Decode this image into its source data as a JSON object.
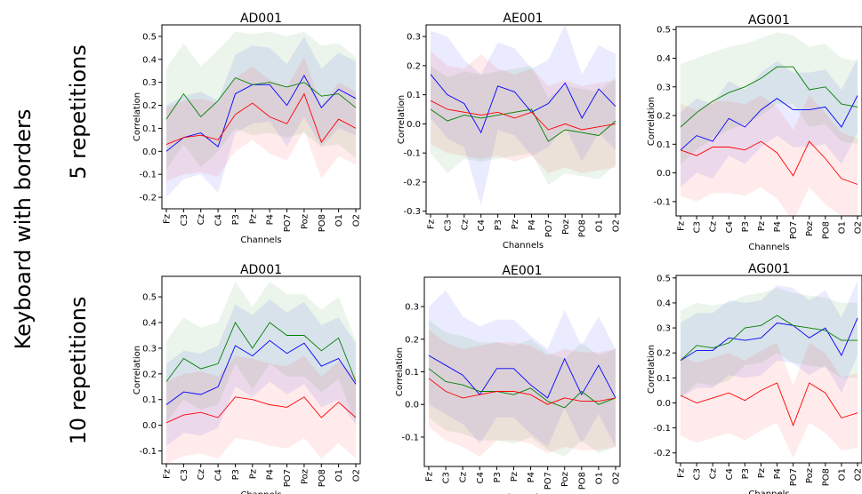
{
  "figure": {
    "row_group_label": "Keyboard with borders",
    "row_labels": [
      "5 repetitions",
      "10 repetitions"
    ]
  },
  "colors": {
    "blue": "#0000ff",
    "green": "#008000",
    "red": "#ff0000"
  },
  "chart_data": [
    {
      "type": "line",
      "title": "AD001",
      "xlabel": "Channels",
      "ylabel": "Correlation",
      "categories": [
        "Fz",
        "C3",
        "Cz",
        "C4",
        "P3",
        "Pz",
        "P4",
        "PO7",
        "Poz",
        "PO8",
        "O1",
        "O2"
      ],
      "ylim": [
        -0.25,
        0.55
      ],
      "yticks": [
        -0.2,
        -0.1,
        0.0,
        0.1,
        0.2,
        0.3,
        0.4,
        0.5
      ],
      "series": [
        {
          "color": "blue",
          "values": [
            0.0,
            0.06,
            0.08,
            0.02,
            0.25,
            0.29,
            0.29,
            0.2,
            0.33,
            0.19,
            0.27,
            0.23
          ],
          "lower": [
            -0.2,
            -0.12,
            -0.1,
            -0.18,
            0.08,
            0.12,
            0.13,
            0.02,
            0.15,
            0.02,
            0.1,
            0.07
          ],
          "upper": [
            0.2,
            0.24,
            0.26,
            0.22,
            0.42,
            0.46,
            0.45,
            0.38,
            0.5,
            0.36,
            0.43,
            0.39
          ]
        },
        {
          "color": "green",
          "values": [
            0.14,
            0.25,
            0.15,
            0.22,
            0.32,
            0.29,
            0.3,
            0.28,
            0.3,
            0.24,
            0.25,
            0.19
          ],
          "lower": [
            -0.08,
            0.03,
            -0.07,
            0.0,
            0.1,
            0.07,
            0.08,
            0.06,
            0.08,
            0.02,
            0.03,
            -0.03
          ],
          "upper": [
            0.36,
            0.47,
            0.37,
            0.44,
            0.52,
            0.51,
            0.52,
            0.5,
            0.52,
            0.46,
            0.47,
            0.41
          ]
        },
        {
          "color": "red",
          "values": [
            0.03,
            0.06,
            0.07,
            0.05,
            0.16,
            0.21,
            0.15,
            0.12,
            0.25,
            0.04,
            0.14,
            0.1
          ],
          "lower": [
            -0.13,
            -0.1,
            -0.09,
            -0.11,
            0.0,
            0.05,
            -0.01,
            -0.04,
            0.09,
            -0.12,
            -0.02,
            -0.06
          ],
          "upper": [
            0.19,
            0.22,
            0.23,
            0.21,
            0.32,
            0.37,
            0.31,
            0.28,
            0.41,
            0.2,
            0.3,
            0.26
          ]
        }
      ]
    },
    {
      "type": "line",
      "title": "AE001",
      "xlabel": "Channels",
      "ylabel": "Correlation",
      "categories": [
        "Fz",
        "C3",
        "Cz",
        "C4",
        "P3",
        "Pz",
        "P4",
        "PO7",
        "Poz",
        "PO8",
        "O1",
        "O2"
      ],
      "ylim": [
        -0.31,
        0.34
      ],
      "yticks": [
        -0.3,
        -0.2,
        -0.1,
        0.0,
        0.1,
        0.2,
        0.3
      ],
      "series": [
        {
          "color": "blue",
          "values": [
            0.17,
            0.1,
            0.07,
            -0.03,
            0.13,
            0.11,
            0.04,
            0.07,
            0.14,
            0.02,
            0.12,
            0.06
          ],
          "lower": [
            0.02,
            -0.05,
            -0.08,
            -0.28,
            -0.02,
            -0.04,
            -0.11,
            -0.08,
            -0.01,
            -0.13,
            -0.03,
            -0.09
          ],
          "upper": [
            0.32,
            0.3,
            0.22,
            0.17,
            0.28,
            0.26,
            0.19,
            0.22,
            0.34,
            0.17,
            0.27,
            0.24
          ]
        },
        {
          "color": "green",
          "values": [
            0.05,
            0.01,
            0.03,
            0.02,
            0.03,
            0.04,
            0.05,
            -0.06,
            -0.02,
            -0.03,
            -0.04,
            0.01
          ],
          "lower": [
            -0.1,
            -0.17,
            -0.12,
            -0.13,
            -0.12,
            -0.11,
            -0.1,
            -0.21,
            -0.17,
            -0.18,
            -0.19,
            -0.14
          ],
          "upper": [
            0.2,
            0.16,
            0.18,
            0.17,
            0.18,
            0.19,
            0.2,
            0.09,
            0.13,
            0.12,
            0.11,
            0.16
          ]
        },
        {
          "color": "red",
          "values": [
            0.08,
            0.05,
            0.04,
            0.03,
            0.04,
            0.02,
            0.04,
            -0.02,
            0.0,
            -0.02,
            -0.01,
            0.0
          ],
          "lower": [
            -0.07,
            -0.1,
            -0.11,
            -0.12,
            -0.11,
            -0.13,
            -0.11,
            -0.17,
            -0.15,
            -0.17,
            -0.16,
            -0.15
          ],
          "upper": [
            0.25,
            0.2,
            0.19,
            0.24,
            0.19,
            0.17,
            0.19,
            0.13,
            0.15,
            0.13,
            0.14,
            0.15
          ]
        }
      ]
    },
    {
      "type": "line",
      "title": "AG001",
      "xlabel": "Channels",
      "ylabel": "Correlation",
      "categories": [
        "Fz",
        "C3",
        "Cz",
        "C4",
        "P3",
        "Pz",
        "P4",
        "PO7",
        "Poz",
        "PO8",
        "O1",
        "O2"
      ],
      "ylim": [
        -0.15,
        0.51
      ],
      "yticks": [
        -0.1,
        0.0,
        0.1,
        0.2,
        0.3,
        0.4,
        0.5
      ],
      "series": [
        {
          "color": "blue",
          "values": [
            0.08,
            0.13,
            0.11,
            0.19,
            0.16,
            0.22,
            0.26,
            0.22,
            0.22,
            0.23,
            0.16,
            0.27
          ],
          "lower": [
            -0.05,
            0.0,
            -0.02,
            0.06,
            0.03,
            0.09,
            0.13,
            0.09,
            0.09,
            0.1,
            0.03,
            0.14
          ],
          "upper": [
            0.21,
            0.26,
            0.24,
            0.32,
            0.29,
            0.35,
            0.39,
            0.35,
            0.35,
            0.36,
            0.29,
            0.4
          ]
        },
        {
          "color": "green",
          "values": [
            0.16,
            0.21,
            0.25,
            0.28,
            0.3,
            0.33,
            0.37,
            0.37,
            0.29,
            0.3,
            0.24,
            0.23
          ],
          "lower": [
            0.03,
            0.08,
            0.12,
            0.15,
            0.17,
            0.2,
            0.24,
            0.24,
            0.16,
            0.17,
            0.11,
            0.1
          ],
          "upper": [
            0.38,
            0.4,
            0.42,
            0.44,
            0.45,
            0.47,
            0.49,
            0.48,
            0.44,
            0.45,
            0.4,
            0.39
          ]
        },
        {
          "color": "red",
          "values": [
            0.08,
            0.06,
            0.09,
            0.09,
            0.08,
            0.11,
            0.07,
            -0.01,
            0.11,
            0.05,
            -0.02,
            -0.04
          ],
          "lower": [
            -0.08,
            -0.1,
            -0.07,
            -0.07,
            -0.08,
            -0.05,
            -0.09,
            -0.17,
            -0.05,
            -0.11,
            -0.15,
            -0.15
          ],
          "upper": [
            0.24,
            0.22,
            0.25,
            0.25,
            0.24,
            0.27,
            0.23,
            0.15,
            0.27,
            0.21,
            0.14,
            0.12
          ]
        }
      ]
    },
    {
      "type": "line",
      "title": "AD001",
      "xlabel": "Channels",
      "ylabel": "Correlation",
      "categories": [
        "Fz",
        "C3",
        "Cz",
        "C4",
        "P3",
        "Pz",
        "P4",
        "PO7",
        "Poz",
        "PO8",
        "O1",
        "O2"
      ],
      "ylim": [
        -0.15,
        0.58
      ],
      "yticks": [
        -0.1,
        0.0,
        0.1,
        0.2,
        0.3,
        0.4,
        0.5
      ],
      "series": [
        {
          "color": "blue",
          "values": [
            0.08,
            0.13,
            0.12,
            0.15,
            0.31,
            0.27,
            0.33,
            0.28,
            0.32,
            0.23,
            0.26,
            0.16
          ],
          "lower": [
            -0.08,
            -0.03,
            -0.04,
            -0.01,
            0.15,
            0.11,
            0.17,
            0.12,
            0.16,
            0.07,
            0.1,
            0.0
          ],
          "upper": [
            0.24,
            0.29,
            0.28,
            0.31,
            0.47,
            0.43,
            0.49,
            0.44,
            0.48,
            0.39,
            0.42,
            0.32
          ]
        },
        {
          "color": "green",
          "values": [
            0.17,
            0.26,
            0.22,
            0.24,
            0.4,
            0.3,
            0.4,
            0.35,
            0.35,
            0.29,
            0.34,
            0.17
          ],
          "lower": [
            0.01,
            0.1,
            0.06,
            0.08,
            0.24,
            0.14,
            0.24,
            0.19,
            0.19,
            0.13,
            0.18,
            0.01
          ],
          "upper": [
            0.33,
            0.42,
            0.38,
            0.4,
            0.56,
            0.46,
            0.56,
            0.51,
            0.51,
            0.45,
            0.5,
            0.33
          ]
        },
        {
          "color": "red",
          "values": [
            0.01,
            0.04,
            0.05,
            0.03,
            0.11,
            0.1,
            0.08,
            0.07,
            0.11,
            0.03,
            0.09,
            0.03
          ],
          "lower": [
            -0.15,
            -0.12,
            -0.11,
            -0.13,
            -0.05,
            -0.06,
            -0.08,
            -0.09,
            -0.05,
            -0.13,
            -0.07,
            -0.13
          ],
          "upper": [
            0.17,
            0.2,
            0.21,
            0.19,
            0.27,
            0.26,
            0.24,
            0.23,
            0.27,
            0.19,
            0.25,
            0.19
          ]
        }
      ]
    },
    {
      "type": "line",
      "title": "AE001",
      "xlabel": "Channels",
      "ylabel": "Correlation",
      "categories": [
        "Fz",
        "C3",
        "Cz",
        "C4",
        "P3",
        "Pz",
        "P4",
        "PO7",
        "Poz",
        "PO8",
        "O1",
        "O2"
      ],
      "ylim": [
        -0.19,
        0.39
      ],
      "yticks": [
        -0.1,
        0.0,
        0.1,
        0.2,
        0.3
      ],
      "series": [
        {
          "color": "blue",
          "values": [
            0.15,
            0.12,
            0.09,
            0.03,
            0.11,
            0.11,
            0.06,
            0.02,
            0.14,
            0.03,
            0.12,
            0.02
          ],
          "lower": [
            0.0,
            -0.03,
            -0.06,
            -0.12,
            -0.04,
            -0.04,
            -0.09,
            -0.13,
            -0.01,
            -0.12,
            -0.03,
            -0.13
          ],
          "upper": [
            0.3,
            0.35,
            0.27,
            0.24,
            0.26,
            0.26,
            0.21,
            0.17,
            0.29,
            0.18,
            0.27,
            0.17
          ]
        },
        {
          "color": "green",
          "values": [
            0.11,
            0.07,
            0.06,
            0.04,
            0.04,
            0.03,
            0.05,
            0.01,
            -0.01,
            0.04,
            0.0,
            0.02
          ],
          "lower": [
            -0.04,
            -0.08,
            -0.09,
            -0.11,
            -0.11,
            -0.12,
            -0.1,
            -0.14,
            -0.16,
            -0.11,
            -0.15,
            -0.13
          ],
          "upper": [
            0.26,
            0.22,
            0.21,
            0.19,
            0.19,
            0.18,
            0.2,
            0.16,
            0.14,
            0.19,
            0.15,
            0.17
          ]
        },
        {
          "color": "red",
          "values": [
            0.08,
            0.04,
            0.02,
            0.03,
            0.04,
            0.04,
            0.03,
            0.0,
            0.02,
            0.01,
            0.01,
            0.02
          ],
          "lower": [
            -0.07,
            -0.11,
            -0.13,
            -0.16,
            -0.11,
            -0.11,
            -0.12,
            -0.15,
            -0.13,
            -0.14,
            -0.14,
            -0.13
          ],
          "upper": [
            0.23,
            0.19,
            0.17,
            0.18,
            0.19,
            0.19,
            0.18,
            0.15,
            0.17,
            0.16,
            0.16,
            0.17
          ]
        }
      ]
    },
    {
      "type": "line",
      "title": "AG001",
      "xlabel": "Channels",
      "ylabel": "Correlation",
      "categories": [
        "Fz",
        "C3",
        "Cz",
        "C4",
        "P3",
        "Pz",
        "P4",
        "PO7",
        "Poz",
        "PO8",
        "O1",
        "O2"
      ],
      "ylim": [
        -0.24,
        0.51
      ],
      "yticks": [
        -0.2,
        -0.1,
        0.0,
        0.1,
        0.2,
        0.3,
        0.4,
        0.5
      ],
      "series": [
        {
          "color": "blue",
          "values": [
            0.17,
            0.21,
            0.21,
            0.26,
            0.25,
            0.26,
            0.32,
            0.31,
            0.26,
            0.3,
            0.19,
            0.34
          ],
          "lower": [
            0.02,
            0.06,
            0.06,
            0.11,
            0.1,
            0.11,
            0.17,
            0.16,
            0.11,
            0.15,
            0.04,
            0.19
          ],
          "upper": [
            0.32,
            0.36,
            0.36,
            0.41,
            0.4,
            0.41,
            0.47,
            0.46,
            0.41,
            0.45,
            0.34,
            0.49
          ]
        },
        {
          "color": "green",
          "values": [
            0.17,
            0.23,
            0.22,
            0.24,
            0.3,
            0.31,
            0.35,
            0.31,
            0.3,
            0.29,
            0.25,
            0.25
          ],
          "lower": [
            0.02,
            0.08,
            0.07,
            0.09,
            0.15,
            0.16,
            0.2,
            0.16,
            0.15,
            0.14,
            0.1,
            0.1
          ],
          "upper": [
            0.37,
            0.4,
            0.39,
            0.4,
            0.43,
            0.44,
            0.46,
            0.44,
            0.43,
            0.42,
            0.4,
            0.4
          ]
        },
        {
          "color": "red",
          "values": [
            0.03,
            0.0,
            0.02,
            0.04,
            0.01,
            0.05,
            0.08,
            -0.09,
            0.08,
            0.04,
            -0.06,
            -0.04
          ],
          "lower": [
            -0.13,
            -0.16,
            -0.14,
            -0.12,
            -0.15,
            -0.11,
            -0.08,
            -0.22,
            -0.08,
            -0.12,
            -0.19,
            -0.18
          ],
          "upper": [
            0.19,
            0.16,
            0.18,
            0.2,
            0.17,
            0.21,
            0.24,
            0.07,
            0.24,
            0.2,
            0.1,
            0.12
          ]
        }
      ]
    }
  ]
}
